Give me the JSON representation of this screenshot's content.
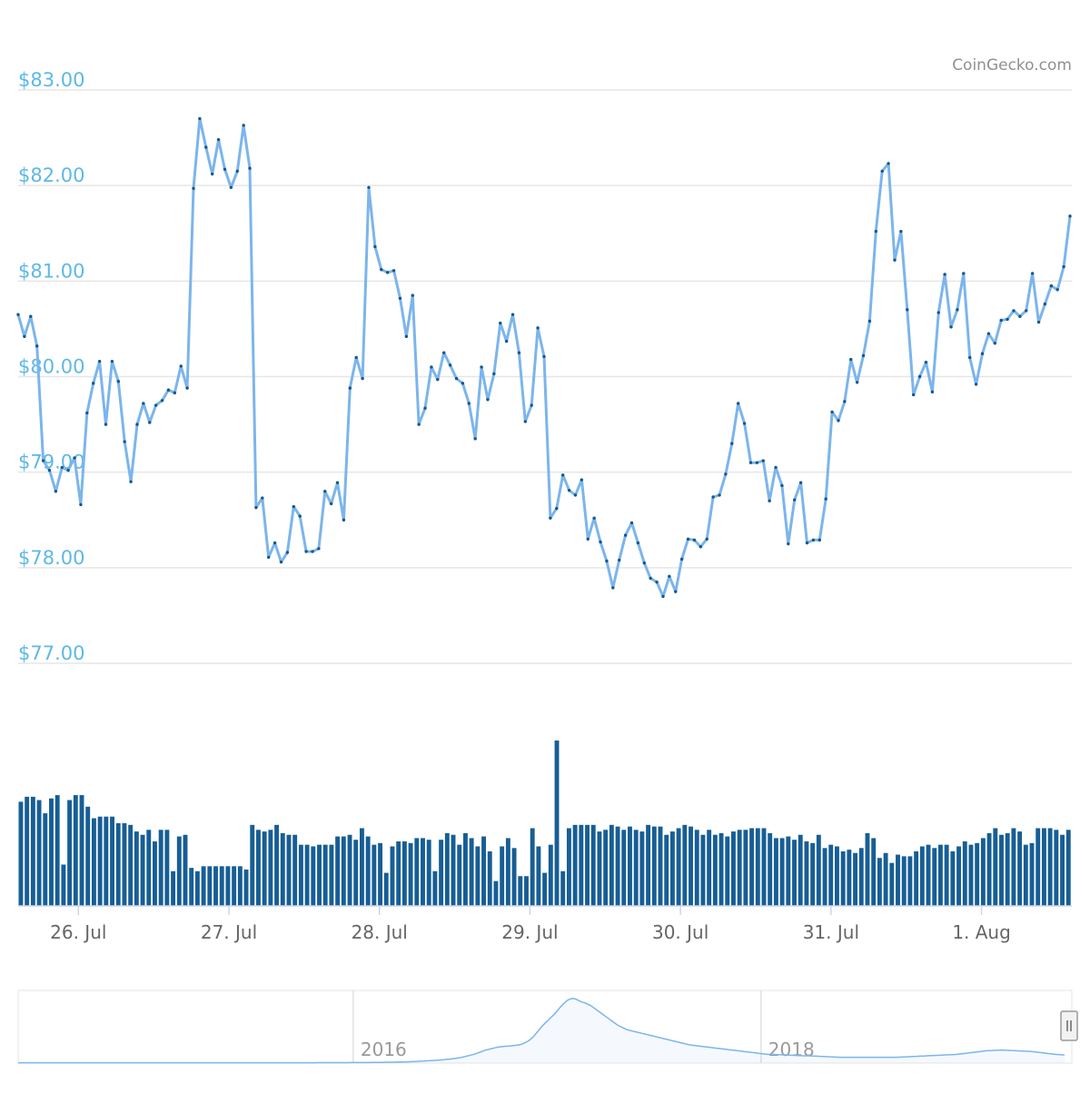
{
  "credit": "CoinGecko.com",
  "chart_data": {
    "type": "line",
    "price": {
      "y_ticks": [
        {
          "value": 83,
          "label": "$83.00"
        },
        {
          "value": 82,
          "label": "$82.00"
        },
        {
          "value": 81,
          "label": "$81.00"
        },
        {
          "value": 80,
          "label": "$80.00"
        },
        {
          "value": 79,
          "label": "$79.00"
        },
        {
          "value": 78,
          "label": "$78.00"
        },
        {
          "value": 77,
          "label": "$77.00"
        }
      ],
      "ylim": [
        77,
        83
      ],
      "x_range_days": [
        0.0,
        7.0
      ],
      "x_ticks": [
        {
          "day": 0.4,
          "label": "26. Jul"
        },
        {
          "day": 1.4,
          "label": "27. Jul"
        },
        {
          "day": 2.4,
          "label": "28. Jul"
        },
        {
          "day": 3.4,
          "label": "29. Jul"
        },
        {
          "day": 4.4,
          "label": "30. Jul"
        },
        {
          "day": 5.4,
          "label": "31. Jul"
        },
        {
          "day": 6.4,
          "label": "1. Aug"
        }
      ],
      "values": [
        80.65,
        80.42,
        80.63,
        80.32,
        79.12,
        79.02,
        78.8,
        79.05,
        79.02,
        79.15,
        78.66,
        79.62,
        79.93,
        80.16,
        79.5,
        80.16,
        79.95,
        79.32,
        78.9,
        79.5,
        79.72,
        79.52,
        79.7,
        79.75,
        79.86,
        79.83,
        80.11,
        79.88,
        81.97,
        82.7,
        82.4,
        82.12,
        82.48,
        82.17,
        81.98,
        82.15,
        82.63,
        82.18,
        78.63,
        78.73,
        78.11,
        78.26,
        78.06,
        78.16,
        78.64,
        78.54,
        78.17,
        78.17,
        78.2,
        78.8,
        78.67,
        78.89,
        78.5,
        79.88,
        80.2,
        79.98,
        81.98,
        81.36,
        81.12,
        81.09,
        81.11,
        80.82,
        80.42,
        80.85,
        79.5,
        79.67,
        80.1,
        79.97,
        80.25,
        80.12,
        79.98,
        79.93,
        79.72,
        79.35,
        80.1,
        79.76,
        80.03,
        80.56,
        80.37,
        80.65,
        80.25,
        79.53,
        79.7,
        80.51,
        80.21,
        78.52,
        78.62,
        78.97,
        78.81,
        78.76,
        78.92,
        78.3,
        78.52,
        78.27,
        78.07,
        77.79,
        78.08,
        78.34,
        78.47,
        78.26,
        78.05,
        77.89,
        77.85,
        77.7,
        77.91,
        77.75,
        78.09,
        78.3,
        78.29,
        78.22,
        78.3,
        78.74,
        78.76,
        78.98,
        79.3,
        79.72,
        79.51,
        79.1,
        79.1,
        79.12,
        78.7,
        79.05,
        78.86,
        78.25,
        78.71,
        78.89,
        78.26,
        78.29,
        78.29,
        78.72,
        79.63,
        79.54,
        79.74,
        80.18,
        79.94,
        80.22,
        80.58,
        81.52,
        82.15,
        82.23,
        81.22,
        81.52,
        80.7,
        79.81,
        80.0,
        80.15,
        79.84,
        80.67,
        81.07,
        80.52,
        80.7,
        81.08,
        80.2,
        79.92,
        80.24,
        80.45,
        80.35,
        80.59,
        80.6,
        80.69,
        80.63,
        80.69,
        81.08,
        80.57,
        80.76,
        80.95,
        80.91,
        81.15,
        81.68
      ]
    },
    "volume": {
      "values": [
        0.63,
        0.66,
        0.66,
        0.64,
        0.56,
        0.65,
        0.67,
        0.25,
        0.64,
        0.67,
        0.67,
        0.6,
        0.53,
        0.54,
        0.54,
        0.54,
        0.5,
        0.5,
        0.49,
        0.45,
        0.43,
        0.46,
        0.39,
        0.46,
        0.46,
        0.21,
        0.42,
        0.43,
        0.23,
        0.21,
        0.24,
        0.24,
        0.24,
        0.24,
        0.24,
        0.24,
        0.24,
        0.22,
        0.49,
        0.46,
        0.45,
        0.46,
        0.49,
        0.44,
        0.43,
        0.43,
        0.37,
        0.37,
        0.36,
        0.37,
        0.37,
        0.37,
        0.42,
        0.42,
        0.43,
        0.4,
        0.47,
        0.42,
        0.37,
        0.38,
        0.2,
        0.36,
        0.39,
        0.39,
        0.38,
        0.41,
        0.41,
        0.4,
        0.21,
        0.4,
        0.44,
        0.43,
        0.37,
        0.44,
        0.41,
        0.36,
        0.42,
        0.33,
        0.15,
        0.36,
        0.41,
        0.35,
        0.18,
        0.18,
        0.47,
        0.36,
        0.2,
        0.37,
        1.0,
        0.21,
        0.47,
        0.49,
        0.49,
        0.49,
        0.49,
        0.45,
        0.46,
        0.49,
        0.48,
        0.46,
        0.48,
        0.46,
        0.45,
        0.49,
        0.48,
        0.48,
        0.43,
        0.45,
        0.47,
        0.49,
        0.48,
        0.46,
        0.43,
        0.46,
        0.43,
        0.44,
        0.42,
        0.45,
        0.46,
        0.46,
        0.47,
        0.47,
        0.47,
        0.44,
        0.41,
        0.41,
        0.42,
        0.4,
        0.43,
        0.39,
        0.38,
        0.43,
        0.35,
        0.37,
        0.36,
        0.33,
        0.34,
        0.32,
        0.35,
        0.44,
        0.41,
        0.29,
        0.32,
        0.26,
        0.31,
        0.3,
        0.3,
        0.33,
        0.36,
        0.37,
        0.35,
        0.37,
        0.37,
        0.33,
        0.36,
        0.39,
        0.37,
        0.38,
        0.41,
        0.44,
        0.47,
        0.43,
        0.44,
        0.47,
        0.45,
        0.37,
        0.38,
        0.47,
        0.47,
        0.47,
        0.46,
        0.43,
        0.46
      ]
    },
    "navigator": {
      "year_labels": [
        {
          "pos": 0.318,
          "label": "2016"
        },
        {
          "pos": 0.705,
          "label": "2018"
        }
      ],
      "values": [
        0.005,
        0.005,
        0.005,
        0.005,
        0.005,
        0.005,
        0.005,
        0.005,
        0.005,
        0.005,
        0.005,
        0.005,
        0.005,
        0.005,
        0.005,
        0.005,
        0.005,
        0.005,
        0.005,
        0.005,
        0.005,
        0.005,
        0.005,
        0.005,
        0.005,
        0.005,
        0.005,
        0.005,
        0.005,
        0.005,
        0.005,
        0.005,
        0.005,
        0.005,
        0.005,
        0.005,
        0.005,
        0.005,
        0.005,
        0.005,
        0.005,
        0.005,
        0.005,
        0.005,
        0.005,
        0.005,
        0.005,
        0.005,
        0.005,
        0.005,
        0.005,
        0.005,
        0.005,
        0.005,
        0.005,
        0.005,
        0.005,
        0.005,
        0.005,
        0.005,
        0.005,
        0.005,
        0.005,
        0.005,
        0.005,
        0.005,
        0.005,
        0.005,
        0.005,
        0.005,
        0.005,
        0.005,
        0.005,
        0.005,
        0.005,
        0.005,
        0.005,
        0.005,
        0.005,
        0.005,
        0.005,
        0.005,
        0.005,
        0.005,
        0.005,
        0.005,
        0.005,
        0.005,
        0.005,
        0.005,
        0.005,
        0.005,
        0.005,
        0.005,
        0.005,
        0.005,
        0.005,
        0.005,
        0.005,
        0.005,
        0.006,
        0.006,
        0.006,
        0.006,
        0.006,
        0.006,
        0.006,
        0.006,
        0.006,
        0.006,
        0.006,
        0.007,
        0.007,
        0.007,
        0.007,
        0.008,
        0.008,
        0.008,
        0.009,
        0.009,
        0.01,
        0.01,
        0.011,
        0.012,
        0.012,
        0.013,
        0.014,
        0.015,
        0.016,
        0.017,
        0.018,
        0.02,
        0.022,
        0.024,
        0.026,
        0.028,
        0.031,
        0.033,
        0.035,
        0.037,
        0.04,
        0.043,
        0.047,
        0.051,
        0.055,
        0.06,
        0.065,
        0.072,
        0.08,
        0.09,
        0.1,
        0.11,
        0.12,
        0.135,
        0.15,
        0.165,
        0.18,
        0.19,
        0.2,
        0.21,
        0.22,
        0.225,
        0.23,
        0.232,
        0.235,
        0.24,
        0.245,
        0.25,
        0.26,
        0.28,
        0.3,
        0.33,
        0.37,
        0.42,
        0.47,
        0.52,
        0.56,
        0.6,
        0.64,
        0.68,
        0.73,
        0.78,
        0.82,
        0.86,
        0.88,
        0.89,
        0.88,
        0.86,
        0.84,
        0.83,
        0.81,
        0.79,
        0.76,
        0.73,
        0.7,
        0.67,
        0.64,
        0.61,
        0.58,
        0.55,
        0.52,
        0.5,
        0.48,
        0.46,
        0.45,
        0.44,
        0.43,
        0.42,
        0.41,
        0.4,
        0.39,
        0.38,
        0.37,
        0.36,
        0.35,
        0.34,
        0.33,
        0.32,
        0.31,
        0.3,
        0.29,
        0.28,
        0.27,
        0.26,
        0.25,
        0.245,
        0.24,
        0.235,
        0.23,
        0.225,
        0.22,
        0.215,
        0.21,
        0.205,
        0.2,
        0.195,
        0.19,
        0.185,
        0.18,
        0.175,
        0.17,
        0.165,
        0.16,
        0.155,
        0.15,
        0.145,
        0.14,
        0.135,
        0.13,
        0.125,
        0.12,
        0.12,
        0.12,
        0.118,
        0.116,
        0.114,
        0.112,
        0.11,
        0.108,
        0.106,
        0.104,
        0.102,
        0.1,
        0.1,
        0.1,
        0.098,
        0.096,
        0.094,
        0.092,
        0.09,
        0.088,
        0.086,
        0.084,
        0.082,
        0.08,
        0.08,
        0.08,
        0.08,
        0.08,
        0.08,
        0.08,
        0.08,
        0.08,
        0.08,
        0.08,
        0.08,
        0.08,
        0.08,
        0.08,
        0.08,
        0.08,
        0.08,
        0.08,
        0.08,
        0.082,
        0.084,
        0.086,
        0.088,
        0.09,
        0.092,
        0.094,
        0.096,
        0.098,
        0.1,
        0.102,
        0.104,
        0.106,
        0.108,
        0.11,
        0.112,
        0.114,
        0.116,
        0.118,
        0.12,
        0.125,
        0.13,
        0.135,
        0.14,
        0.145,
        0.15,
        0.155,
        0.16,
        0.165,
        0.17,
        0.172,
        0.174,
        0.176,
        0.178,
        0.18,
        0.178,
        0.176,
        0.174,
        0.172,
        0.17,
        0.168,
        0.166,
        0.164,
        0.162,
        0.16,
        0.155,
        0.15,
        0.145,
        0.14,
        0.135,
        0.13,
        0.125,
        0.12,
        0.118,
        0.115,
        0.112
      ]
    }
  }
}
